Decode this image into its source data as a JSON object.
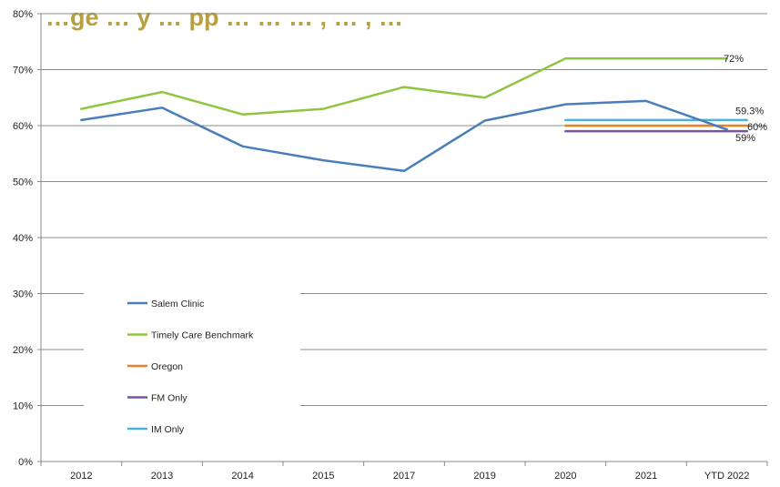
{
  "chart_data": {
    "type": "line",
    "title": "…ge … y … pp … … … , … , …",
    "categories": [
      "2012",
      "2013",
      "2014",
      "2015",
      "2017",
      "2019",
      "2020",
      "2021",
      "YTD 2022"
    ],
    "yticks": [
      "0%",
      "10%",
      "20%",
      "30%",
      "40%",
      "50%",
      "60%",
      "70%",
      "80%"
    ],
    "ylim": [
      0,
      80
    ],
    "grid": true,
    "legend_position": "lower-left inside plot",
    "series": [
      {
        "name": "Salem Clinic",
        "color": "#4a7ebb",
        "values": [
          61,
          63.2,
          56.3,
          53.8,
          51.9,
          60.9,
          63.8,
          64.4,
          59.3
        ]
      },
      {
        "name": "Timely Care Benchmark",
        "color": "#8ec641",
        "values": [
          63,
          66,
          62,
          63,
          66.9,
          65,
          72,
          72,
          72
        ]
      },
      {
        "name": "Oregon",
        "color": "#f07f22",
        "values": [
          null,
          null,
          null,
          null,
          null,
          null,
          60,
          60,
          60
        ]
      },
      {
        "name": "FM Only",
        "color": "#7a52a1",
        "values": [
          null,
          null,
          null,
          null,
          null,
          null,
          59,
          59,
          59
        ]
      },
      {
        "name": "IM Only",
        "color": "#4bb3d8",
        "values": [
          null,
          null,
          null,
          null,
          null,
          null,
          61,
          61,
          61
        ]
      }
    ],
    "annotations": [
      {
        "text": "72%",
        "series": "Timely Care Benchmark"
      },
      {
        "text": "59.3%",
        "series": "Salem Clinic"
      },
      {
        "text": "60%",
        "series": "Oregon"
      },
      {
        "text": "59%",
        "series": "FM Only"
      }
    ]
  }
}
